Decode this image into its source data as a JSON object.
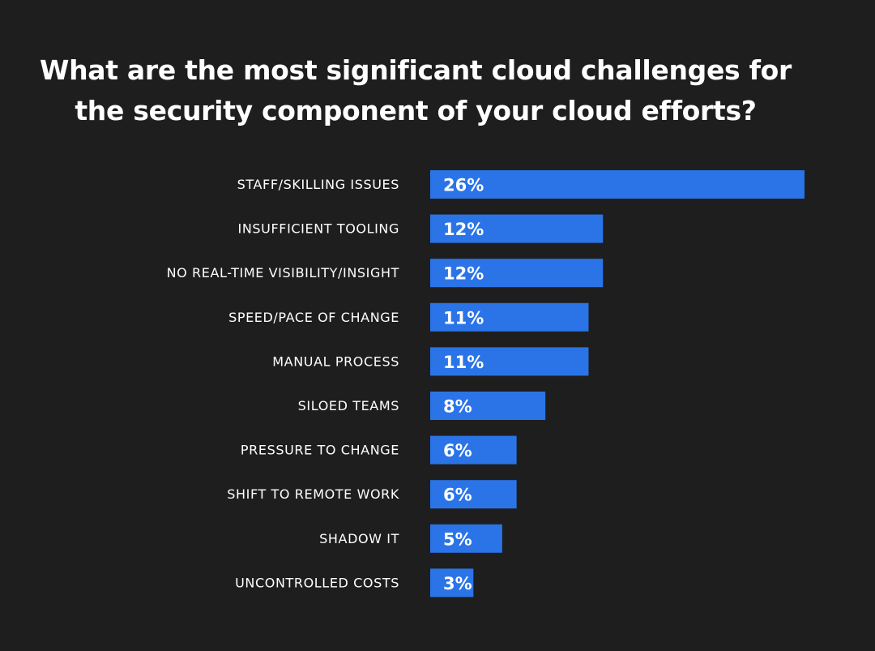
{
  "chart_data": {
    "type": "bar",
    "orientation": "horizontal",
    "title_lines": [
      "What are the most significant cloud challenges for",
      "the security component of your cloud efforts?"
    ],
    "categories": [
      "STAFF/SKILLING ISSUES",
      "INSUFFICIENT TOOLING",
      "NO REAL-TIME VISIBILITY/INSIGHT",
      "SPEED/PACE OF CHANGE",
      "MANUAL PROCESS",
      "SILOED TEAMS",
      "PRESSURE TO CHANGE",
      "SHIFT TO REMOTE WORK",
      "SHADOW IT",
      "UNCONTROLLED COSTS"
    ],
    "values": [
      26,
      12,
      12,
      11,
      11,
      8,
      6,
      6,
      5,
      3
    ],
    "value_labels": [
      "26%",
      "12%",
      "12%",
      "11%",
      "11%",
      "8%",
      "6%",
      "6%",
      "5%",
      "3%"
    ],
    "unit": "%",
    "xlim": [
      0,
      26
    ],
    "grid": false,
    "bar_color": "#2b74e8",
    "background_color": "#1e1e1e",
    "text_color": "#ffffff"
  }
}
